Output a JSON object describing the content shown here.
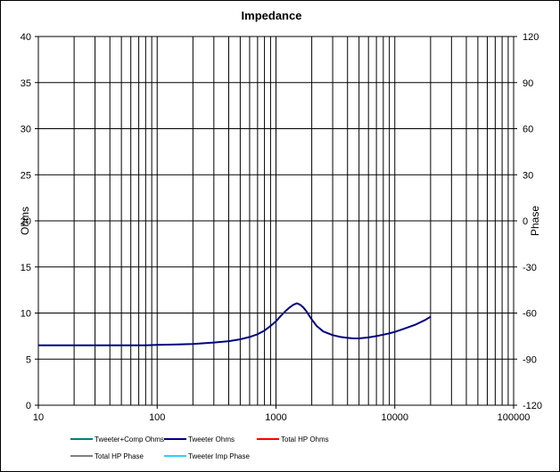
{
  "chart_data": {
    "type": "line",
    "title": "Impedance",
    "ylabel": "Ohms",
    "y2label": "Phase",
    "xscale": "log",
    "xlim": [
      10,
      100000
    ],
    "ylim": [
      0,
      40
    ],
    "y2lim": [
      -120,
      120
    ],
    "x_ticks": [
      "10",
      "100",
      "1000",
      "10000",
      "100000"
    ],
    "y_ticks": [
      "0",
      "5",
      "10",
      "15",
      "20",
      "25",
      "30",
      "35",
      "40"
    ],
    "y2_ticks": [
      "-120",
      "-90",
      "-60",
      "-30",
      "0",
      "30",
      "60",
      "90",
      "120"
    ],
    "grid": true,
    "legend_position": "bottom",
    "legend": [
      {
        "name": "Tweeter+Comp Ohms",
        "color": "#008080"
      },
      {
        "name": "Tweeter Ohms",
        "color": "#000080"
      },
      {
        "name": "Total HP Ohms",
        "color": "#ff0000"
      },
      {
        "name": "Total HP Phase",
        "color": "#808080"
      },
      {
        "name": "Tweeter Imp Phase",
        "color": "#33ccff"
      }
    ],
    "series": [
      {
        "name": "Tweeter Ohms",
        "color": "#000080",
        "x": [
          10,
          20,
          50,
          80,
          100,
          150,
          200,
          300,
          400,
          500,
          600,
          700,
          800,
          900,
          1000,
          1100,
          1200,
          1300,
          1400,
          1500,
          1600,
          1700,
          1800,
          2000,
          2200,
          2500,
          3000,
          3500,
          4000,
          4500,
          5000,
          6000,
          7000,
          8000,
          9000,
          10000,
          12000,
          15000,
          18000,
          20000
        ],
        "y": [
          6.5,
          6.5,
          6.5,
          6.5,
          6.55,
          6.6,
          6.65,
          6.8,
          6.95,
          7.15,
          7.4,
          7.7,
          8.1,
          8.6,
          9.1,
          9.7,
          10.2,
          10.6,
          10.9,
          11.05,
          10.9,
          10.6,
          10.2,
          9.3,
          8.6,
          8.0,
          7.6,
          7.4,
          7.3,
          7.25,
          7.25,
          7.35,
          7.5,
          7.65,
          7.8,
          7.95,
          8.3,
          8.75,
          9.25,
          9.6
        ]
      }
    ]
  }
}
